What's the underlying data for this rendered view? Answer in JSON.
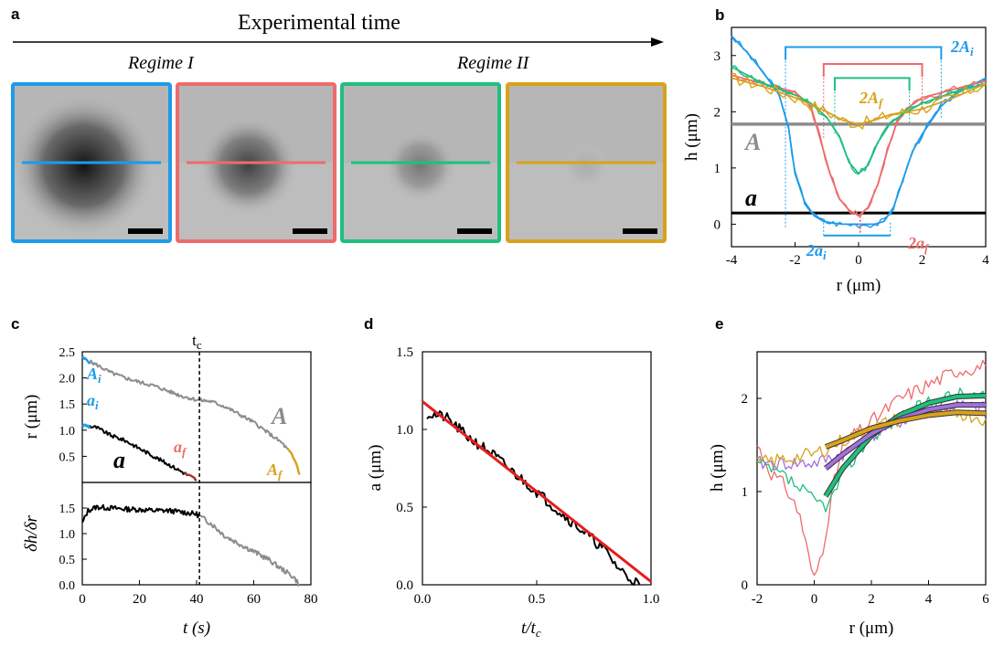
{
  "colors": {
    "blue": "#1e9bea",
    "red": "#ee6b6b",
    "green": "#1fbf7f",
    "gold": "#d9a21b",
    "gray": "#8c8c8c",
    "purple": "#a46fe0",
    "black": "#000000"
  },
  "panel_a": {
    "label": "a",
    "timeline_title": "Experimental time",
    "regime1": "Regime I",
    "regime2": "Regime II",
    "tiles": [
      {
        "name": "blue",
        "dark_intensity": 1.0,
        "radius_frac": 0.38
      },
      {
        "name": "red",
        "dark_intensity": 0.75,
        "radius_frac": 0.22
      },
      {
        "name": "green",
        "dark_intensity": 0.45,
        "radius_frac": 0.16
      },
      {
        "name": "gold",
        "dark_intensity": 0.15,
        "radius_frac": 0.1
      }
    ]
  },
  "chart_data": [
    {
      "id": "b",
      "type": "line",
      "label": "b",
      "xlabel": "r (μm)",
      "ylabel": "h (μm)",
      "xlim": [
        -4,
        4
      ],
      "ylim": [
        -0.4,
        3.5
      ],
      "xticks": [
        "-4",
        "-2",
        "0",
        "2",
        "4"
      ],
      "yticks": [
        "0",
        "1",
        "2",
        "3"
      ],
      "series": [
        {
          "color": "blue",
          "x": [
            -4,
            -3.5,
            -3,
            -2.5,
            -2.2,
            -2,
            -1.7,
            -1.4,
            -1.1,
            -0.8,
            -0.5,
            0,
            0.5,
            0.8,
            1.1,
            1.4,
            1.7,
            2,
            2.3,
            2.6,
            3,
            3.5,
            4
          ],
          "y": [
            3.35,
            3.05,
            2.7,
            2.3,
            1.7,
            0.9,
            0.4,
            0.15,
            0.05,
            0.02,
            0.0,
            0.0,
            0.0,
            0.05,
            0.3,
            0.8,
            1.3,
            1.6,
            1.85,
            2.1,
            2.3,
            2.45,
            2.6
          ]
        },
        {
          "color": "red",
          "x": [
            -4,
            -3,
            -2,
            -1.5,
            -1.2,
            -0.9,
            -0.6,
            -0.3,
            0,
            0.3,
            0.6,
            0.9,
            1.2,
            1.5,
            2,
            3,
            4
          ],
          "y": [
            2.65,
            2.5,
            2.35,
            2.1,
            1.5,
            0.9,
            0.45,
            0.25,
            0.15,
            0.3,
            0.7,
            1.3,
            1.8,
            2.05,
            2.25,
            2.4,
            2.55
          ]
        },
        {
          "color": "green",
          "x": [
            -4,
            -3,
            -2,
            -1.5,
            -1,
            -0.6,
            -0.3,
            0,
            0.3,
            0.6,
            1,
            1.5,
            2,
            3,
            4
          ],
          "y": [
            2.8,
            2.5,
            2.3,
            2.15,
            1.9,
            1.55,
            1.1,
            0.9,
            1.05,
            1.45,
            1.8,
            2.0,
            2.15,
            2.35,
            2.5
          ]
        },
        {
          "color": "gold",
          "x": [
            -4,
            -3,
            -2,
            -1,
            -0.5,
            0,
            0.5,
            1,
            2,
            3,
            4
          ],
          "y": [
            2.6,
            2.45,
            2.25,
            2.0,
            1.85,
            1.78,
            1.85,
            1.95,
            2.05,
            2.25,
            2.5
          ]
        }
      ],
      "A_level": 1.78,
      "a_level": 0.2,
      "A_label": "A",
      "a_label": "a",
      "annot_2Ai": "2A",
      "annot_2Ai_sub": "i",
      "annot_2Af": "2A",
      "annot_2Af_sub": "f",
      "annot_2ai": "2a",
      "annot_2ai_sub": "i",
      "annot_2af": "2a",
      "annot_2af_sub": "f"
    },
    {
      "id": "c",
      "type": "line",
      "label": "c",
      "xlabel": "t (s)",
      "ylabel_top": "r (μm)",
      "ylabel_bottom": "δh/δr",
      "tc_label": "t",
      "tc_sub": "c",
      "tc": 41,
      "xlim": [
        0,
        80
      ],
      "xticks": [
        "0",
        "20",
        "40",
        "60",
        "80"
      ],
      "top_ylim": [
        0,
        2.5
      ],
      "top_yticks": [
        "0.5",
        "1.0",
        "1.5",
        "2.0",
        "2.5"
      ],
      "bottom_ylim": [
        0,
        2.0
      ],
      "bottom_yticks": [
        "0.0",
        "0.5",
        "1.0",
        "1.5"
      ],
      "A_curve": {
        "t": [
          0,
          5,
          10,
          15,
          20,
          25,
          30,
          35,
          40,
          45,
          50,
          55,
          60,
          65,
          70,
          73,
          75,
          76
        ],
        "r": [
          2.38,
          2.25,
          2.1,
          2.0,
          1.92,
          1.85,
          1.75,
          1.65,
          1.58,
          1.55,
          1.45,
          1.3,
          1.15,
          0.95,
          0.75,
          0.55,
          0.35,
          0.15
        ]
      },
      "a_curve": {
        "t": [
          0,
          5,
          10,
          15,
          20,
          25,
          30,
          35,
          40
        ],
        "r": [
          1.1,
          1.05,
          0.9,
          0.8,
          0.65,
          0.5,
          0.35,
          0.2,
          0.05
        ]
      },
      "slope_curve": {
        "t": [
          0,
          2,
          5,
          10,
          15,
          20,
          25,
          30,
          35,
          40,
          45,
          50,
          55,
          60,
          65,
          70,
          74,
          76
        ],
        "v": [
          1.2,
          1.45,
          1.52,
          1.5,
          1.48,
          1.47,
          1.45,
          1.45,
          1.42,
          1.38,
          1.2,
          0.95,
          0.8,
          0.65,
          0.5,
          0.3,
          0.15,
          0.0
        ]
      },
      "labels": {
        "Ai": "A",
        "Ai_sub": "i",
        "ai": "a",
        "ai_sub": "i",
        "A": "A",
        "a": "a",
        "af": "a",
        "af_sub": "f",
        "Af": "A",
        "Af_sub": "f"
      }
    },
    {
      "id": "d",
      "type": "line",
      "label": "d",
      "xlabel": "t/t",
      "xlabel_sub": "c",
      "ylabel": "a (μm)",
      "xlim": [
        0,
        1.0
      ],
      "ylim": [
        0,
        1.5
      ],
      "xticks": [
        "0.0",
        "0.5",
        "1.0"
      ],
      "yticks": [
        "0.0",
        "0.5",
        "1.0",
        "1.5"
      ],
      "data": {
        "x": [
          0.02,
          0.1,
          0.2,
          0.3,
          0.4,
          0.5,
          0.6,
          0.7,
          0.8,
          0.85,
          0.9,
          0.95
        ],
        "y": [
          1.1,
          1.08,
          0.95,
          0.85,
          0.72,
          0.6,
          0.47,
          0.35,
          0.22,
          0.12,
          0.05,
          0.0
        ]
      },
      "fit": {
        "x": [
          0.0,
          1.0
        ],
        "y": [
          1.18,
          0.02
        ]
      }
    },
    {
      "id": "e",
      "type": "line",
      "label": "e",
      "xlabel": "r (μm)",
      "ylabel": "h (μm)",
      "xlim": [
        -2,
        6
      ],
      "ylim": [
        0,
        2.5
      ],
      "xticks": [
        "-2",
        "0",
        "2",
        "4",
        "6"
      ],
      "yticks": [
        "0",
        "1",
        "2"
      ],
      "raw": [
        {
          "color": "red",
          "x": [
            -2,
            -1.5,
            -1,
            -0.5,
            -0.2,
            0,
            0.3,
            0.7,
            1,
            2,
            3,
            4,
            5,
            6
          ],
          "y": [
            1.5,
            1.2,
            1.05,
            0.75,
            0.3,
            0.05,
            0.4,
            1.1,
            1.5,
            1.75,
            2.0,
            2.15,
            2.3,
            2.35
          ]
        },
        {
          "color": "green",
          "x": [
            -2,
            -1,
            0,
            0.5,
            1,
            2,
            3,
            4,
            5,
            6
          ],
          "y": [
            1.3,
            1.15,
            0.9,
            0.85,
            1.2,
            1.6,
            1.8,
            1.95,
            2.05,
            2.0
          ]
        },
        {
          "color": "purple",
          "x": [
            -2,
            -1,
            0,
            1,
            2,
            3,
            4,
            5,
            6
          ],
          "y": [
            1.3,
            1.3,
            1.3,
            1.4,
            1.6,
            1.75,
            1.85,
            1.92,
            1.88
          ]
        },
        {
          "color": "gold",
          "x": [
            -2,
            -1,
            0,
            1,
            2,
            3,
            4,
            5,
            6
          ],
          "y": [
            1.3,
            1.35,
            1.4,
            1.55,
            1.68,
            1.78,
            1.85,
            1.85,
            1.78
          ]
        }
      ],
      "fits": [
        {
          "color": "green",
          "x": [
            0.4,
            1,
            2,
            3,
            4,
            5,
            6
          ],
          "y": [
            0.95,
            1.25,
            1.6,
            1.82,
            1.95,
            2.02,
            2.03
          ]
        },
        {
          "color": "purple",
          "x": [
            0.4,
            1,
            2,
            3,
            4,
            5,
            6
          ],
          "y": [
            1.25,
            1.4,
            1.62,
            1.78,
            1.88,
            1.93,
            1.93
          ]
        },
        {
          "color": "gold",
          "x": [
            0.4,
            1,
            2,
            3,
            4,
            5,
            6
          ],
          "y": [
            1.48,
            1.55,
            1.68,
            1.76,
            1.82,
            1.85,
            1.84
          ]
        }
      ]
    }
  ]
}
